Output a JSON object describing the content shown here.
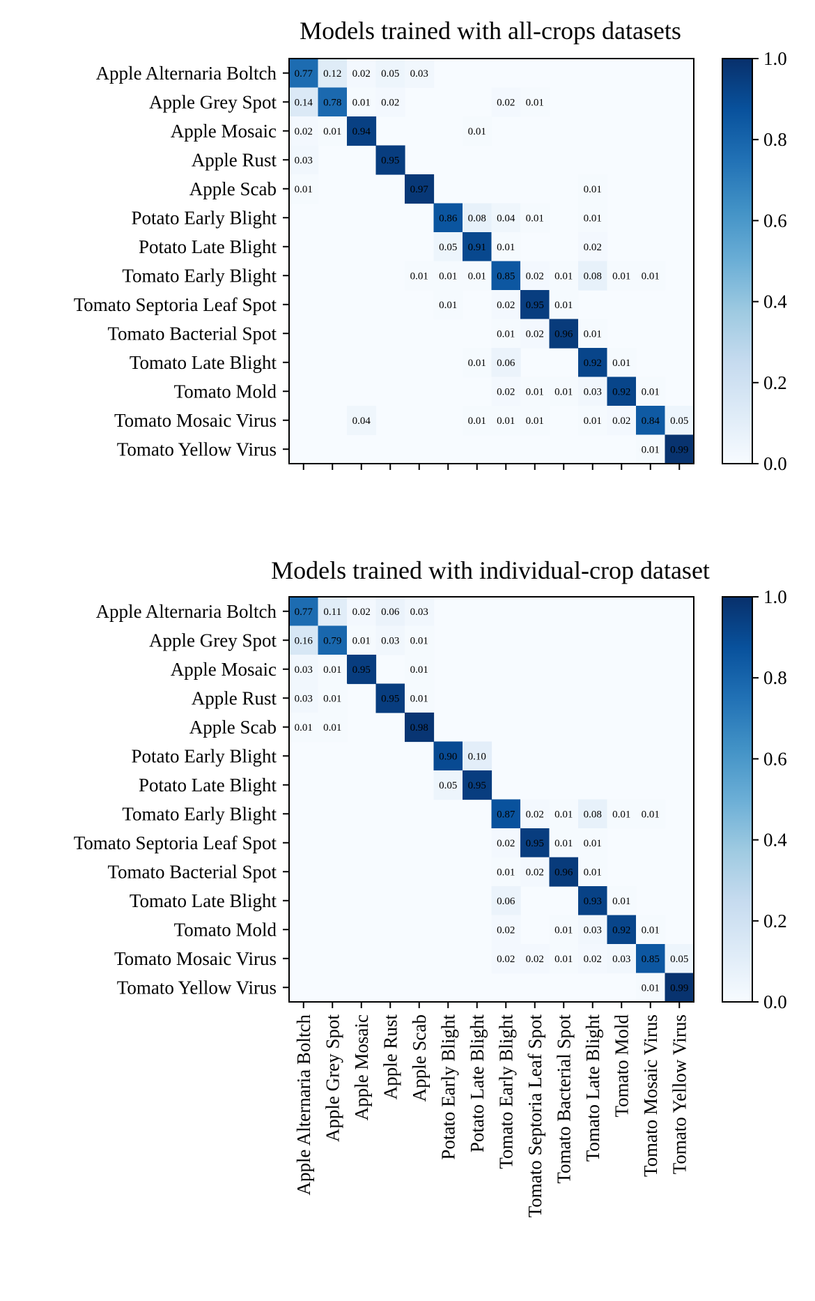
{
  "chart_data": [
    {
      "type": "heatmap",
      "title": "Models trained with all-crops datasets",
      "classes": [
        "Apple Alternaria Boltch",
        "Apple Grey Spot",
        "Apple Mosaic",
        "Apple Rust",
        "Apple Scab",
        "Potato Early Blight",
        "Potato Late Blight",
        "Tomato Early Blight",
        "Tomato Septoria Leaf Spot",
        "Tomato Bacterial Spot",
        "Tomato Late Blight",
        "Tomato Mold",
        "Tomato Mosaic Virus",
        "Tomato Yellow Virus"
      ],
      "show_x_tick_labels": false,
      "colormap": "Blues",
      "vmin": 0.0,
      "vmax": 1.0,
      "colorbar_ticks": [
        "0.0",
        "0.2",
        "0.4",
        "0.6",
        "0.8",
        "1.0"
      ],
      "matrix": [
        [
          0.77,
          0.12,
          0.02,
          0.05,
          0.03,
          0,
          0,
          0,
          0,
          0,
          0,
          0,
          0,
          0
        ],
        [
          0.14,
          0.78,
          0.01,
          0.02,
          0,
          0,
          0,
          0.02,
          0.01,
          0,
          0,
          0,
          0,
          0
        ],
        [
          0.02,
          0.01,
          0.94,
          0,
          0,
          0,
          0.01,
          0,
          0,
          0,
          0,
          0,
          0,
          0
        ],
        [
          0.03,
          0,
          0,
          0.95,
          0,
          0,
          0,
          0,
          0,
          0,
          0,
          0,
          0,
          0
        ],
        [
          0.01,
          0,
          0,
          0,
          0.97,
          0,
          0,
          0,
          0,
          0,
          0.01,
          0,
          0,
          0
        ],
        [
          0,
          0,
          0,
          0,
          0,
          0.86,
          0.08,
          0.04,
          0.01,
          0,
          0.01,
          0,
          0,
          0
        ],
        [
          0,
          0,
          0,
          0,
          0,
          0.05,
          0.91,
          0.01,
          0,
          0,
          0.02,
          0,
          0,
          0
        ],
        [
          0,
          0,
          0,
          0,
          0.01,
          0.01,
          0.01,
          0.85,
          0.02,
          0.01,
          0.08,
          0.01,
          0.01,
          0
        ],
        [
          0,
          0,
          0,
          0,
          0,
          0.01,
          0,
          0.02,
          0.95,
          0.01,
          0,
          0,
          0,
          0
        ],
        [
          0,
          0,
          0,
          0,
          0,
          0,
          0,
          0.01,
          0.02,
          0.96,
          0.01,
          0,
          0,
          0
        ],
        [
          0,
          0,
          0,
          0,
          0,
          0,
          0.01,
          0.06,
          0,
          0,
          0.92,
          0.01,
          0,
          0
        ],
        [
          0,
          0,
          0,
          0,
          0,
          0,
          0,
          0.02,
          0.01,
          0.01,
          0.03,
          0.92,
          0.01,
          0
        ],
        [
          0,
          0,
          0.04,
          0,
          0,
          0,
          0.01,
          0.01,
          0.01,
          0,
          0.01,
          0.02,
          0.84,
          0.05
        ],
        [
          0,
          0,
          0,
          0,
          0,
          0,
          0,
          0,
          0,
          0,
          0,
          0,
          0.01,
          0.99
        ]
      ]
    },
    {
      "type": "heatmap",
      "title": "Models trained with individual-crop dataset",
      "classes": [
        "Apple Alternaria Boltch",
        "Apple Grey Spot",
        "Apple Mosaic",
        "Apple Rust",
        "Apple Scab",
        "Potato Early Blight",
        "Potato Late Blight",
        "Tomato Early Blight",
        "Tomato Septoria Leaf Spot",
        "Tomato Bacterial Spot",
        "Tomato Late Blight",
        "Tomato Mold",
        "Tomato Mosaic Virus",
        "Tomato Yellow Virus"
      ],
      "show_x_tick_labels": true,
      "colormap": "Blues",
      "vmin": 0.0,
      "vmax": 1.0,
      "colorbar_ticks": [
        "0.0",
        "0.2",
        "0.4",
        "0.6",
        "0.8",
        "1.0"
      ],
      "matrix": [
        [
          0.77,
          0.11,
          0.02,
          0.06,
          0.03,
          0,
          0,
          0,
          0,
          0,
          0,
          0,
          0,
          0
        ],
        [
          0.16,
          0.79,
          0.01,
          0.03,
          0.01,
          0,
          0,
          0,
          0,
          0,
          0,
          0,
          0,
          0
        ],
        [
          0.03,
          0.01,
          0.95,
          0,
          0.01,
          0,
          0,
          0,
          0,
          0,
          0,
          0,
          0,
          0
        ],
        [
          0.03,
          0.01,
          0,
          0.95,
          0.01,
          0,
          0,
          0,
          0,
          0,
          0,
          0,
          0,
          0
        ],
        [
          0.01,
          0.01,
          0,
          0,
          0.98,
          0,
          0,
          0,
          0,
          0,
          0,
          0,
          0,
          0
        ],
        [
          0,
          0,
          0,
          0,
          0,
          0.9,
          0.1,
          0,
          0,
          0,
          0,
          0,
          0,
          0
        ],
        [
          0,
          0,
          0,
          0,
          0,
          0.05,
          0.95,
          0,
          0,
          0,
          0,
          0,
          0,
          0
        ],
        [
          0,
          0,
          0,
          0,
          0,
          0,
          0,
          0.87,
          0.02,
          0.01,
          0.08,
          0.01,
          0.01,
          0
        ],
        [
          0,
          0,
          0,
          0,
          0,
          0,
          0,
          0.02,
          0.95,
          0.01,
          0.01,
          0,
          0,
          0
        ],
        [
          0,
          0,
          0,
          0,
          0,
          0,
          0,
          0.01,
          0.02,
          0.96,
          0.01,
          0,
          0,
          0
        ],
        [
          0,
          0,
          0,
          0,
          0,
          0,
          0,
          0.06,
          0,
          0,
          0.93,
          0.01,
          0,
          0
        ],
        [
          0,
          0,
          0,
          0,
          0,
          0,
          0,
          0.02,
          0,
          0.01,
          0.03,
          0.92,
          0.01,
          0
        ],
        [
          0,
          0,
          0,
          0,
          0,
          0,
          0,
          0.02,
          0.02,
          0.01,
          0.02,
          0.03,
          0.85,
          0.05
        ],
        [
          0,
          0,
          0,
          0,
          0,
          0,
          0,
          0,
          0,
          0,
          0,
          0,
          0.01,
          0.99
        ]
      ]
    }
  ]
}
